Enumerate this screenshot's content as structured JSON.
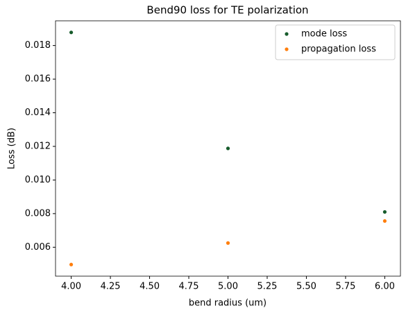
{
  "chart_data": {
    "type": "scatter",
    "title": "Bend90 loss for TE polarization",
    "xlabel": "bend radius (um)",
    "ylabel": "Loss (dB)",
    "series": [
      {
        "name": "mode loss",
        "color": "#175c2c",
        "x": [
          4,
          5,
          6
        ],
        "values": [
          0.01878,
          0.01188,
          0.0081
        ]
      },
      {
        "name": "propagation loss",
        "color": "#ff7f0e",
        "x": [
          4,
          5,
          6
        ],
        "values": [
          0.00497,
          0.00625,
          0.00756
        ]
      }
    ],
    "xlim": [
      3.9,
      6.1
    ],
    "xticks": [
      {
        "value": 4,
        "label": "4.00"
      },
      {
        "value": 4.25,
        "label": "4.25"
      },
      {
        "value": 4.5,
        "label": "4.50"
      },
      {
        "value": 4.75,
        "label": "4.75"
      },
      {
        "value": 5,
        "label": "5.00"
      },
      {
        "value": 5.25,
        "label": "5.25"
      },
      {
        "value": 5.5,
        "label": "5.50"
      },
      {
        "value": 5.75,
        "label": "5.75"
      },
      {
        "value": 6,
        "label": "6.00"
      }
    ],
    "ylim": [
      0.00428,
      0.01947
    ],
    "yticks": [
      0.006,
      0.008,
      {
        "value": 0.01,
        "label": "0.010"
      },
      0.012,
      0.014,
      0.016,
      0.018
    ],
    "legend": "upper right",
    "grid": false
  }
}
